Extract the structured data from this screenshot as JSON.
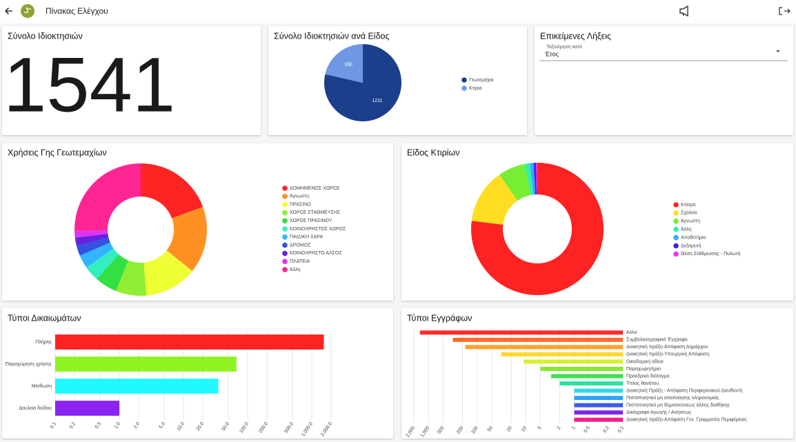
{
  "header": {
    "title": "Πίνακας Ελέγχου"
  },
  "total_card": {
    "title": "Σύνολο Ιδιοκτησιών",
    "value": 1541
  },
  "expiry_card": {
    "title": "Επικείμενες Λήξεις",
    "sort_label": "Ταξινόμηση κατά",
    "sort_value": "Έτος"
  },
  "chart_data": [
    {
      "type": "pie",
      "title": "Σύνολο Ιδιοκτησιών ανά Είδος",
      "categories": [
        "Γεωτεμάχια",
        "Κτίρια"
      ],
      "values": [
        1211,
        330
      ],
      "colors": [
        "#1c3f8c",
        "#6f97e3"
      ],
      "data_labels": true,
      "legend": "right"
    },
    {
      "type": "doughnut",
      "title": "Χρήσεις Γης Γεωτεμαχίων",
      "categories": [
        "ΔΟΜΗΜΕΝΟΣ ΧΩΡΟΣ",
        "Άγνωστη",
        "ΠΡΑΣΙΝΟ",
        "ΧΩΡΟΣ ΣΤΑΘΜΕΥΣΗΣ",
        "ΧΩΡΟΣ ΠΡΑΣΙΝΟΥ",
        "ΚΟΙΝΟΧΡΗΣΤΟΣ ΧΩΡΟΣ",
        "ΠΑΙΔΙΚΗ ΧΑΡΑ",
        "ΔΡΟΜΟΣ",
        "ΚΟΙΝΟΧΡΗΣΤΟ ΑΛΣΟΣ",
        "ΠΛΑΤΕΙΑ",
        "Άλλη"
      ],
      "values": [
        235,
        198,
        155,
        91,
        66,
        45,
        40,
        30,
        24,
        20,
        306
      ],
      "colors": [
        "#ff2424",
        "#ff9124",
        "#eeff33",
        "#8fee33",
        "#33e043",
        "#33eec0",
        "#33b4ff",
        "#3352e0",
        "#6322e0",
        "#e033f0",
        "#ff2593"
      ],
      "legend": "right"
    },
    {
      "type": "doughnut",
      "title": "Είδος Κτιρίων",
      "categories": [
        "Κτίσμα",
        "Σχολείο",
        "Άγνωστη",
        "Άλλη",
        "Αποθετήριο",
        "Δεξαμενή",
        "Θέση Στάθμευσης - Πυλωτή"
      ],
      "values": [
        254,
        44,
        22,
        4,
        3,
        2,
        1
      ],
      "colors": [
        "#ff2222",
        "#ffdd22",
        "#77ee33",
        "#33eeb0",
        "#33aaff",
        "#4422dd",
        "#ee33ee"
      ],
      "legend": "right"
    },
    {
      "type": "bar",
      "orientation": "horizontal",
      "title": "Τύποι Δικαιωμάτων",
      "log_x": true,
      "grid": true,
      "categories": [
        "Πλήρης",
        "Παραχώρηση χρήσης",
        "Μίσθωση",
        "Δουλεία διόδου"
      ],
      "values": [
        1541,
        67,
        35,
        1
      ],
      "colors": [
        "#ff2222",
        "#8ff222",
        "#22f8ff",
        "#8a22f0"
      ],
      "xlim": [
        0.1,
        2000
      ],
      "xticks": [
        0.1,
        0.2,
        0.5,
        {
          "value": 1,
          "label": "1.0"
        },
        {
          "value": 2,
          "label": "2.0"
        },
        {
          "value": 5,
          "label": "5.0"
        },
        {
          "value": 10,
          "label": "10.0"
        },
        {
          "value": 20,
          "label": "20.0"
        },
        {
          "value": 50,
          "label": "50.0"
        },
        {
          "value": 100,
          "label": "100.0"
        },
        {
          "value": 200,
          "label": "200.0"
        },
        {
          "value": 500,
          "label": "500.0"
        },
        {
          "value": 1000,
          "label": "1,000.0"
        },
        {
          "value": 2000,
          "label": "2,000.0"
        }
      ]
    },
    {
      "type": "bar",
      "orientation": "horizontal",
      "title": "Τύποι Εγγράφων",
      "log_x": true,
      "grid": true,
      "label_side": "right",
      "categories": [
        "Άλλο",
        "Συμβολαιογραφικό Έγγραφο",
        "Διοικητική πράξη-Απόφαση Δημάρχου",
        "Διοικητική πράξη-Υπουργική Απόφαση",
        "Οικοδομική άδεια",
        "Παραχωρητήριο",
        "Προεδρικό διάταγμα",
        "Τίτλος θανάτου",
        "Διοικητική Πράξη - Απόφαση Περιφερειακού Διευθυντή",
        "Πιστοποιητικό μη αποποίησης κληρονομιάς",
        "Πιστοποιητικό μη δημοσιεύσεως άλλης διαθήκης",
        "Δικόγραφο Αγωγής / Αιτήσεως",
        "Διοικητική πράξη-Απόφαση Γεν. Γραμματέα Περιφέρειας"
      ],
      "values": [
        1500,
        315,
        175,
        32,
        11,
        5,
        3,
        2,
        1,
        1,
        1,
        1,
        1
      ],
      "colors": [
        "#ff2a2a",
        "#ff6a2a",
        "#ffa030",
        "#ffd830",
        "#d8f030",
        "#88e830",
        "#40e050",
        "#30e0a0",
        "#30d8e8",
        "#30a0f8",
        "#3a5ae8",
        "#7a28e8",
        "#f0208c"
      ],
      "xlim": [
        2000,
        0.1
      ],
      "xticks": [
        {
          "value": 2000,
          "label": "2,000"
        },
        {
          "value": 1000,
          "label": "1,000"
        },
        500,
        200,
        100,
        50,
        20,
        10,
        5,
        2,
        1,
        0.5,
        0.2,
        0.1
      ]
    }
  ]
}
